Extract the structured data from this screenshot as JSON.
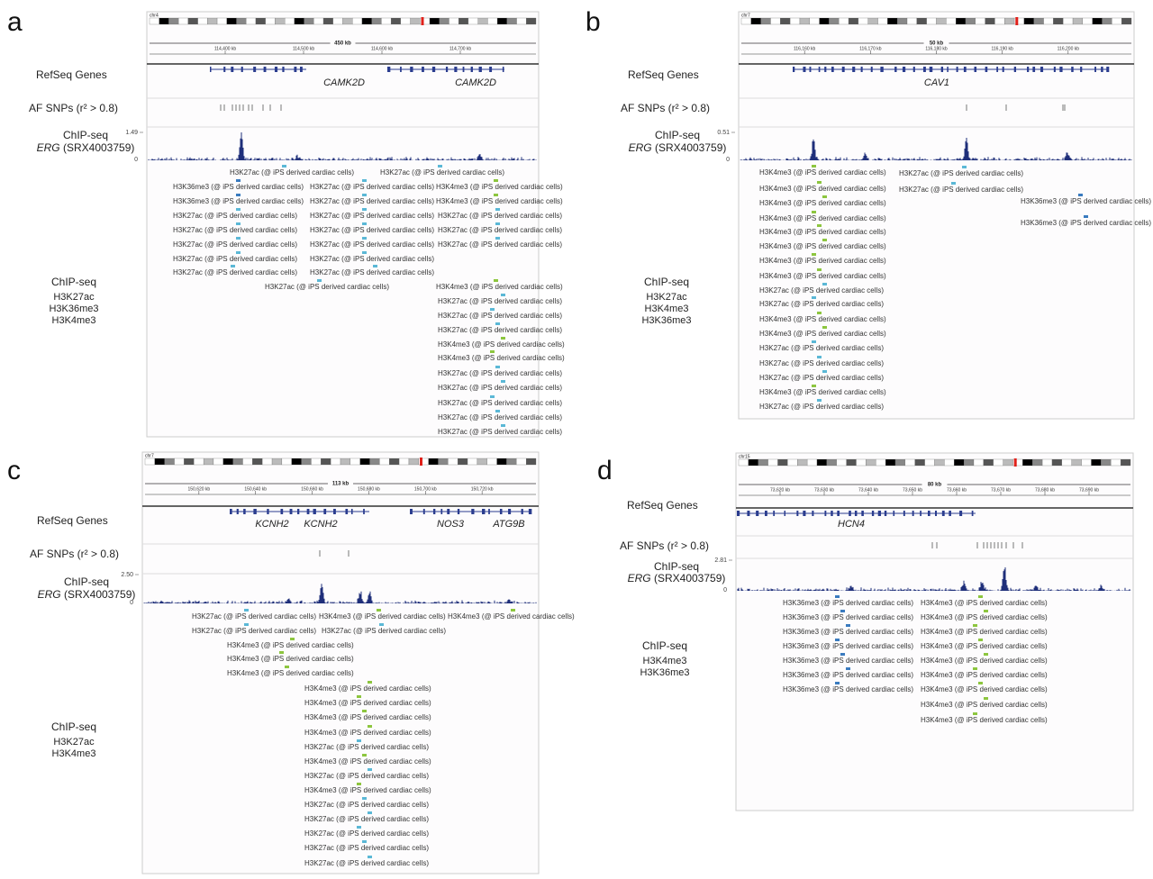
{
  "panels": [
    {
      "letter": "a",
      "chrom": "chr4",
      "scale": "450 kb",
      "coords": [
        "114,400 kb",
        "114,500 kb",
        "114,600 kb",
        "114,700 kb"
      ],
      "refseq_label": "RefSeq Genes",
      "genes": [
        "CAMK2D",
        "CAMK2D"
      ],
      "snp_label": "AF SNPs (r² > 0.8)",
      "chip_label": "ChIP-seq",
      "erg_gene": "ERG",
      "erg_sample": "(SRX4003759)",
      "signal_max": "1.49",
      "signal_min": "0",
      "peak_suffix": "(@ iPS derived cardiac cells)",
      "peaks": [
        "H3K27ac",
        "H3K27ac",
        "H3K36me3",
        "H3K27ac",
        "H3K4me3",
        "H3K36me3",
        "H3K27ac",
        "H3K4me3",
        "H3K27ac",
        "H3K27ac",
        "H3K27ac",
        "H3K27ac",
        "H3K27ac",
        "H3K27ac",
        "H3K27ac",
        "H3K27ac",
        "H3K27ac",
        "H3K27ac",
        "H3K27ac",
        "H3K27ac",
        "H3K27ac",
        "H3K27ac",
        "H3K4me3",
        "H3K27ac",
        "H3K27ac",
        "H3K27ac",
        "H3K4me3",
        "H3K4me3",
        "H3K27ac",
        "H3K27ac",
        "H3K27ac",
        "H3K27ac",
        "H3K27ac"
      ],
      "legend": [
        "ChIP-seq",
        "H3K27ac",
        "H3K36me3",
        "H3K4me3"
      ]
    },
    {
      "letter": "b",
      "chrom": "chr7",
      "scale": "50 kb",
      "coords": [
        "116,160 kb",
        "116,170 kb",
        "116,180 kb",
        "116,190 kb",
        "116,200 kb"
      ],
      "refseq_label": "RefSeq Genes",
      "genes": [
        "CAV1"
      ],
      "snp_label": "AF SNPs (r² > 0.8)",
      "chip_label": "ChIP-seq",
      "erg_gene": "ERG",
      "erg_sample": "(SRX4003759)",
      "signal_max": "0.51",
      "signal_min": "0",
      "peak_suffix": "(@ iPS derived cardiac cells)",
      "peaks": [
        "H3K4me3",
        "H3K4me3",
        "H3K4me3",
        "H3K4me3",
        "H3K4me3",
        "H3K4me3",
        "H3K4me3",
        "H3K4me3",
        "H3K27ac",
        "H3K27ac",
        "H3K4me3",
        "H3K4me3",
        "H3K27ac",
        "H3K27ac",
        "H3K27ac",
        "H3K4me3",
        "H3K27ac",
        "H3K27ac",
        "H3K27ac",
        "H3K36me3",
        "H3K36me3"
      ],
      "legend": [
        "ChIP-seq",
        "H3K27ac",
        "H3K4me3",
        "H3K36me3"
      ]
    },
    {
      "letter": "c",
      "chrom": "chr7",
      "scale": "113 kb",
      "coords": [
        "150,620 kb",
        "150,640 kb",
        "150,660 kb",
        "150,680 kb",
        "150,700 kb",
        "150,720 kb"
      ],
      "refseq_label": "RefSeq Genes",
      "genes": [
        "KCNH2",
        "KCNH2",
        "NOS3",
        "ATG9B"
      ],
      "snp_label": "AF SNPs (r² > 0.8)",
      "chip_label": "ChIP-seq",
      "erg_gene": "ERG",
      "erg_sample": "(SRX4003759)",
      "signal_max": "2.50",
      "signal_min": "0",
      "peak_suffix": "(@ iPS derived cardiac cells)",
      "peaks": [
        "H3K27ac",
        "H3K4me3",
        "H3K4me3",
        "H3K27ac",
        "H3K27ac",
        "H3K4me3",
        "H3K4me3",
        "H3K4me3",
        "H3K4me3",
        "H3K4me3",
        "H3K4me3",
        "H3K4me3",
        "H3K27ac",
        "H3K4me3",
        "H3K27ac",
        "H3K4me3",
        "H3K27ac",
        "H3K27ac",
        "H3K27ac",
        "H3K27ac",
        "H3K27ac"
      ],
      "legend": [
        "ChIP-seq",
        "H3K27ac",
        "H3K4me3"
      ]
    },
    {
      "letter": "d",
      "chrom": "chr15",
      "scale": "80 kb",
      "coords": [
        "73,620 kb",
        "73,630 kb",
        "73,640 kb",
        "73,650 kb",
        "73,660 kb",
        "73,670 kb",
        "73,680 kb",
        "73,690 kb"
      ],
      "refseq_label": "RefSeq Genes",
      "genes": [
        "HCN4"
      ],
      "snp_label": "AF SNPs (r² > 0.8)",
      "chip_label": "ChIP-seq",
      "erg_gene": "ERG",
      "erg_sample": "(SRX4003759)",
      "signal_max": "2.81",
      "signal_min": "0",
      "peak_suffix": "(@ iPS derived cardiac cells)",
      "peaks": [
        "H3K36me3",
        "H3K36me3",
        "H3K36me3",
        "H3K36me3",
        "H3K36me3",
        "H3K36me3",
        "H3K36me3",
        "H3K4me3",
        "H3K4me3",
        "H3K4me3",
        "H3K4me3",
        "H3K4me3",
        "H3K4me3",
        "H3K4me3",
        "H3K4me3",
        "H3K4me3"
      ],
      "legend": [
        "ChIP-seq",
        "H3K4me3",
        "H3K36me3"
      ]
    }
  ]
}
